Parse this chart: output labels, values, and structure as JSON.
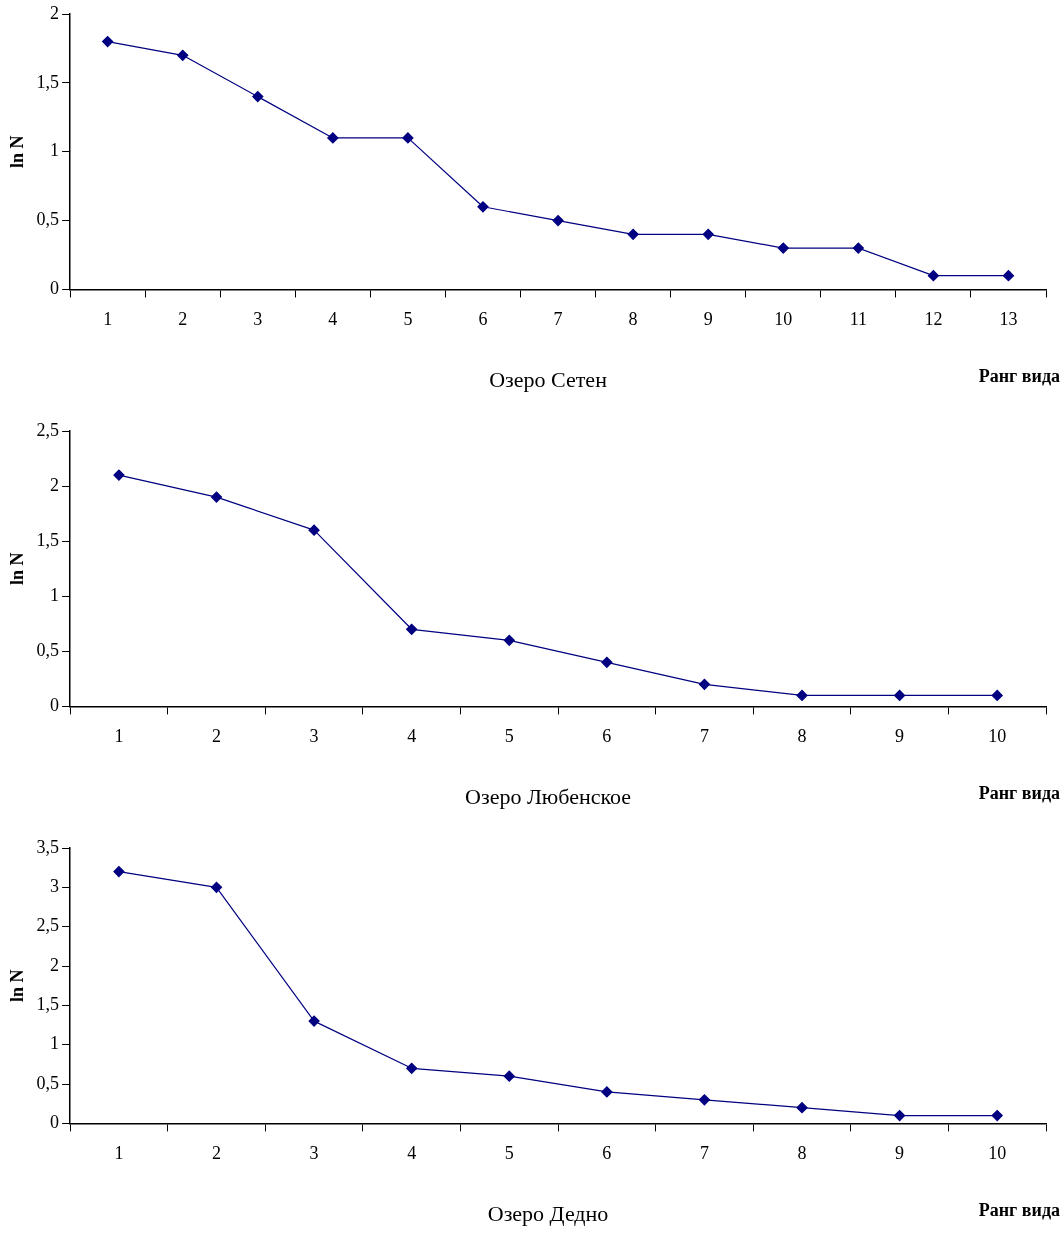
{
  "chart_data": [
    {
      "type": "line",
      "title": "Озеро Сетен",
      "xlabel": "Ранг вида",
      "ylabel": "ln N",
      "categories": [
        "1",
        "2",
        "3",
        "4",
        "5",
        "6",
        "7",
        "8",
        "9",
        "10",
        "11",
        "12",
        "13"
      ],
      "marker": "diamond",
      "ylim": [
        0,
        2
      ],
      "yticks": [
        0,
        {
          "value": 0.5,
          "label": "0,5"
        },
        1,
        {
          "value": 1.5,
          "label": "1,5"
        },
        2
      ],
      "series": [
        {
          "color": "#000080",
          "values": [
            1.8,
            1.7,
            1.4,
            1.1,
            1.1,
            0.6,
            0.5,
            0.4,
            0.4,
            0.3,
            0.3,
            0.1,
            0.1
          ]
        }
      ]
    },
    {
      "type": "line",
      "title": "Озеро Любенское",
      "xlabel": "Ранг вида",
      "ylabel": "ln N",
      "categories": [
        "1",
        "2",
        "3",
        "4",
        "5",
        "6",
        "7",
        "8",
        "9",
        "10"
      ],
      "marker": "diamond",
      "ylim": [
        0,
        2.5
      ],
      "yticks": [
        0,
        {
          "value": 0.5,
          "label": "0,5"
        },
        1,
        {
          "value": 1.5,
          "label": "1,5"
        },
        2,
        {
          "value": 2.5,
          "label": "2,5"
        }
      ],
      "series": [
        {
          "color": "#000080",
          "values": [
            2.1,
            1.9,
            1.6,
            0.7,
            0.6,
            0.4,
            0.2,
            0.1,
            0.1,
            0.1
          ]
        }
      ]
    },
    {
      "type": "line",
      "title": "Озеро Дедно",
      "xlabel": "Ранг вида",
      "ylabel": "ln N",
      "categories": [
        "1",
        "2",
        "3",
        "4",
        "5",
        "6",
        "7",
        "8",
        "9",
        "10"
      ],
      "marker": "diamond",
      "ylim": [
        0,
        3.5
      ],
      "yticks": [
        0,
        {
          "value": 0.5,
          "label": "0,5"
        },
        1,
        {
          "value": 1.5,
          "label": "1,5"
        },
        2,
        {
          "value": 2.5,
          "label": "2,5"
        },
        3,
        {
          "value": 3.5,
          "label": "3,5"
        }
      ],
      "series": [
        {
          "color": "#000080",
          "values": [
            3.2,
            3.0,
            1.3,
            0.7,
            0.6,
            0.4,
            0.3,
            0.2,
            0.1,
            0.1
          ]
        }
      ]
    }
  ]
}
